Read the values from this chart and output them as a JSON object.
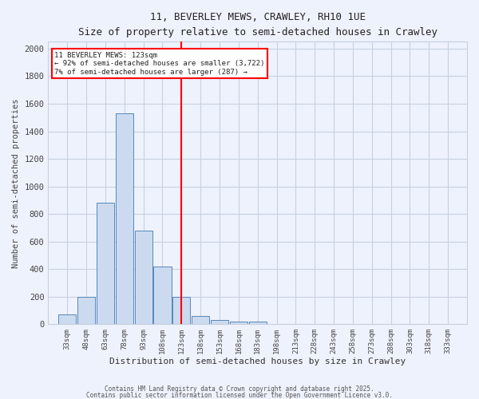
{
  "title_line1": "11, BEVERLEY MEWS, CRAWLEY, RH10 1UE",
  "title_line2": "Size of property relative to semi-detached houses in Crawley",
  "xlabel": "Distribution of semi-detached houses by size in Crawley",
  "ylabel": "Number of semi-detached properties",
  "bin_labels": [
    "33sqm",
    "48sqm",
    "63sqm",
    "78sqm",
    "93sqm",
    "108sqm",
    "123sqm",
    "138sqm",
    "153sqm",
    "168sqm",
    "183sqm",
    "198sqm",
    "213sqm",
    "228sqm",
    "243sqm",
    "258sqm",
    "273sqm",
    "288sqm",
    "303sqm",
    "318sqm",
    "333sqm"
  ],
  "bin_centers": [
    33,
    48,
    63,
    78,
    93,
    108,
    123,
    138,
    153,
    168,
    183,
    198,
    213,
    228,
    243,
    258,
    273,
    288,
    303,
    318,
    333
  ],
  "counts": [
    70,
    200,
    880,
    1530,
    680,
    420,
    200,
    60,
    30,
    20,
    20,
    0,
    0,
    0,
    0,
    0,
    0,
    0,
    0,
    0,
    0
  ],
  "bar_color": "#ccdaf0",
  "bar_edge_color": "#5588bb",
  "red_line_x": 123,
  "ylim": [
    0,
    2050
  ],
  "yticks": [
    0,
    200,
    400,
    600,
    800,
    1000,
    1200,
    1400,
    1600,
    1800,
    2000
  ],
  "legend_title": "11 BEVERLEY MEWS: 123sqm",
  "legend_line1": "← 92% of semi-detached houses are smaller (3,722)",
  "legend_line2": "7% of semi-detached houses are larger (287) →",
  "background_color": "#eef2fc",
  "grid_color": "#c8d0e0",
  "footer_line1": "Contains HM Land Registry data © Crown copyright and database right 2025.",
  "footer_line2": "Contains public sector information licensed under the Open Government Licence v3.0."
}
